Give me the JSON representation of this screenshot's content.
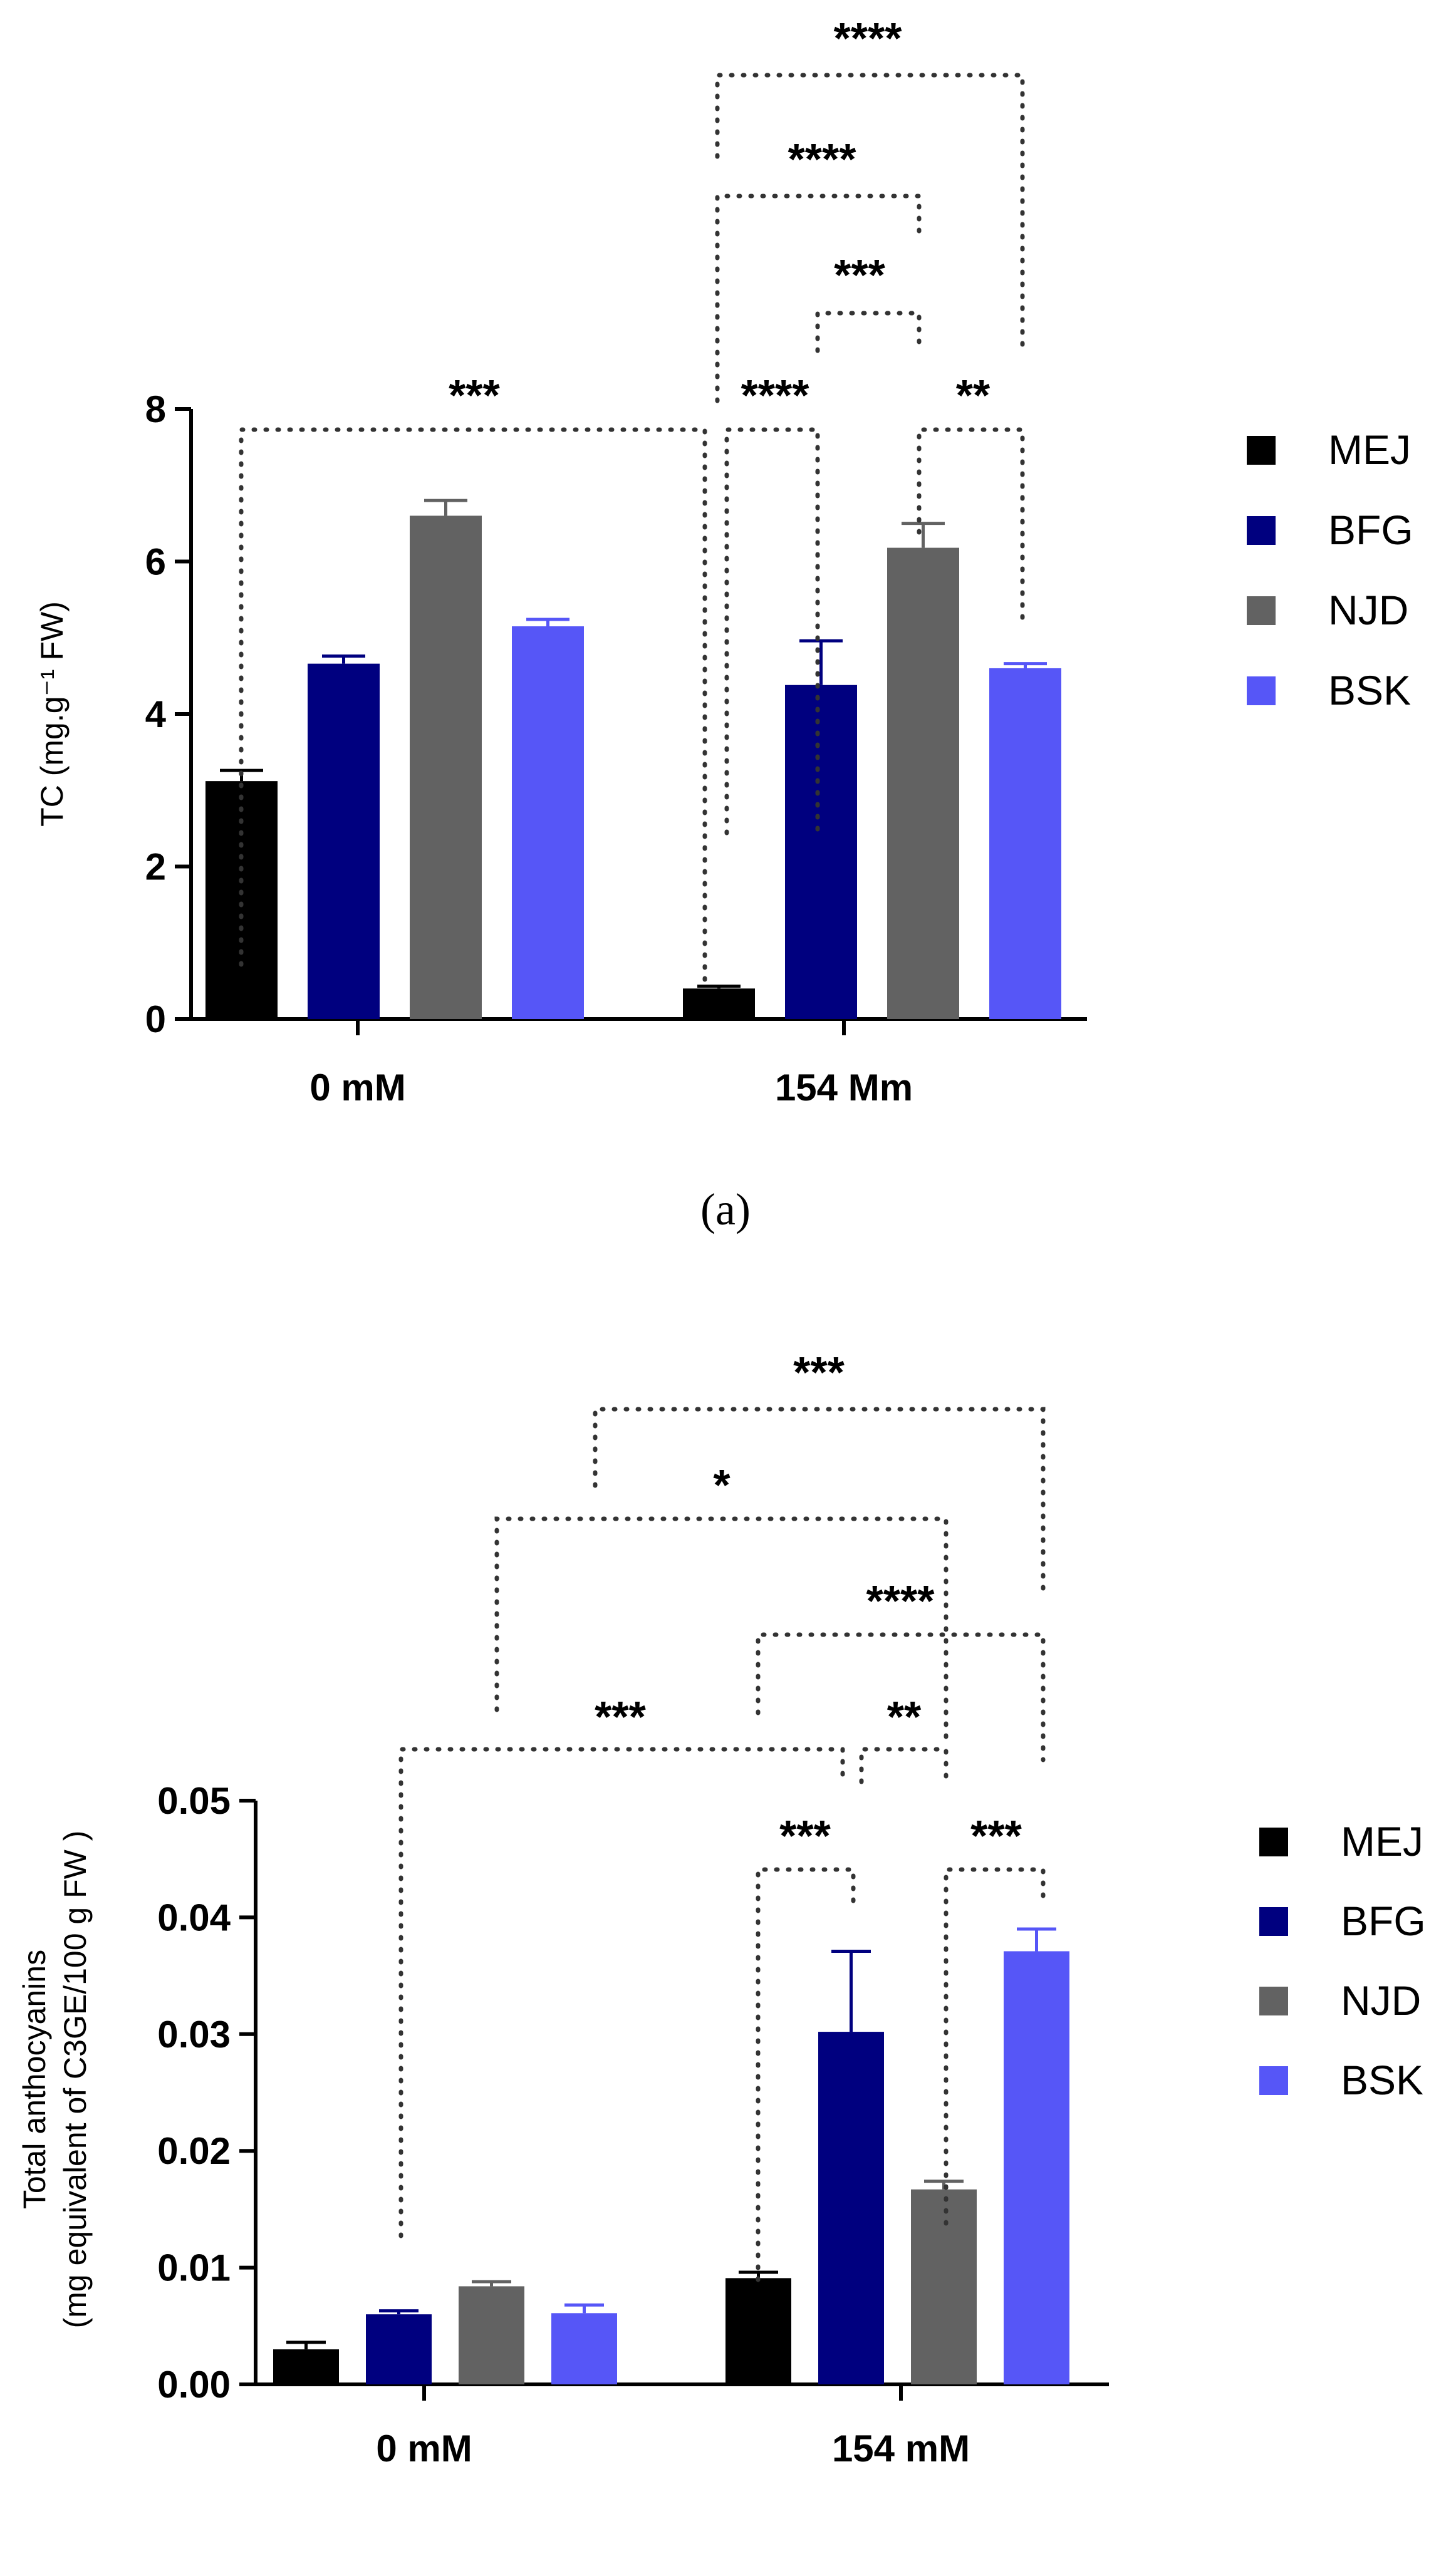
{
  "chart_data": [
    {
      "panel": "a",
      "type": "bar",
      "caption": "(a)",
      "ylabel": "TC (mg.g⁻¹ FW)",
      "ylim": [
        0,
        8
      ],
      "yticks": [
        0,
        2,
        4,
        6,
        8
      ],
      "ytick_labels": [
        "0",
        "2",
        "4",
        "6",
        "8"
      ],
      "categories": [
        "0 mM",
        "154 Mm"
      ],
      "series": [
        {
          "name": "MEJ",
          "color": "#000000",
          "values": [
            3.12,
            0.4
          ],
          "errors": [
            0.14,
            0.03
          ]
        },
        {
          "name": "BFG",
          "color": "#00007f",
          "values": [
            4.66,
            4.38
          ],
          "errors": [
            0.1,
            0.58
          ]
        },
        {
          "name": "NJD",
          "color": "#626262",
          "values": [
            6.6,
            6.18
          ],
          "errors": [
            0.2,
            0.32
          ]
        },
        {
          "name": "BSK",
          "color": "#5656f7",
          "values": [
            5.15,
            4.6
          ],
          "errors": [
            0.09,
            0.06
          ]
        }
      ],
      "significance": [
        {
          "label": "***"
        },
        {
          "label": "****"
        },
        {
          "label": "**"
        },
        {
          "label": "***"
        },
        {
          "label": "****"
        },
        {
          "label": "****"
        }
      ]
    },
    {
      "panel": "b",
      "type": "bar",
      "caption": "(b)",
      "ylabel_line1": "Total anthocyanins",
      "ylabel_line2": "(mg equivalent of  C3GE/100 g FW )",
      "ylim": [
        0,
        0.05
      ],
      "yticks": [
        0,
        0.01,
        0.02,
        0.03,
        0.04,
        0.05
      ],
      "ytick_labels": [
        "0.00",
        "0.01",
        "0.02",
        "0.03",
        "0.04",
        "0.05"
      ],
      "categories": [
        "0 mM",
        "154 mM"
      ],
      "series": [
        {
          "name": "MEJ",
          "color": "#000000",
          "values": [
            0.003,
            0.0091
          ],
          "errors": [
            0.0006,
            0.0005
          ]
        },
        {
          "name": "BFG",
          "color": "#00007f",
          "values": [
            0.006,
            0.0302
          ],
          "errors": [
            0.0003,
            0.0069
          ]
        },
        {
          "name": "NJD",
          "color": "#626262",
          "values": [
            0.0084,
            0.0167
          ],
          "errors": [
            0.0004,
            0.0007
          ]
        },
        {
          "name": "BSK",
          "color": "#5656f7",
          "values": [
            0.0061,
            0.0371
          ],
          "errors": [
            0.0007,
            0.0019
          ]
        }
      ],
      "significance": [
        {
          "label": "***"
        },
        {
          "label": "***"
        },
        {
          "label": "***"
        },
        {
          "label": "**"
        },
        {
          "label": "****"
        },
        {
          "label": "*"
        },
        {
          "label": "***"
        }
      ]
    }
  ]
}
